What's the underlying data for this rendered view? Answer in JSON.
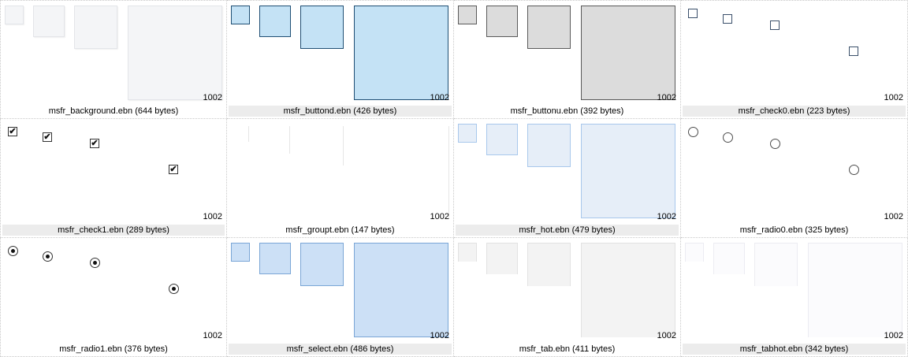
{
  "thumbnail_size_label": "1002",
  "files": [
    {
      "name": "msfr_background.ebn (644 bytes)",
      "style": "bg",
      "selected": false
    },
    {
      "name": "msfr_buttond.ebn (426 bytes)",
      "style": "bd",
      "selected": true
    },
    {
      "name": "msfr_buttonu.ebn (392 bytes)",
      "style": "bu",
      "selected": false
    },
    {
      "name": "msfr_check0.ebn (223 bytes)",
      "style": "ck0",
      "selected": true
    },
    {
      "name": "msfr_check1.ebn (289 bytes)",
      "style": "ck1",
      "selected": true
    },
    {
      "name": "msfr_groupt.ebn (147 bytes)",
      "style": "gp",
      "selected": false
    },
    {
      "name": "msfr_hot.ebn (479 bytes)",
      "style": "hot",
      "selected": true
    },
    {
      "name": "msfr_radio0.ebn (325 bytes)",
      "style": "rd0",
      "selected": false
    },
    {
      "name": "msfr_radio1.ebn (376 bytes)",
      "style": "rd1",
      "selected": false
    },
    {
      "name": "msfr_select.ebn (486 bytes)",
      "style": "slc",
      "selected": true
    },
    {
      "name": "msfr_tab.ebn (411 bytes)",
      "style": "tab",
      "selected": false
    },
    {
      "name": "msfr_tabhot.ebn (342 bytes)",
      "style": "tbh",
      "selected": true
    }
  ],
  "check_glyph": "✔"
}
